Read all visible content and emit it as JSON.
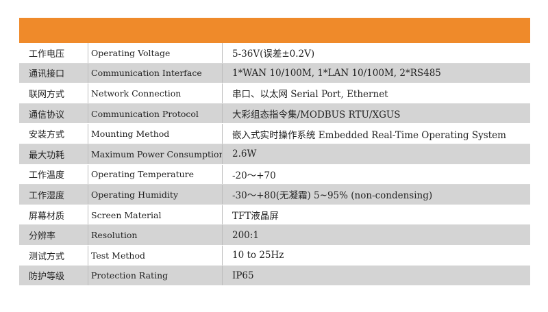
{
  "header": {
    "color": "#ef8a2a"
  },
  "rows": [
    {
      "zh": "工作电压",
      "en": "Operating Voltage",
      "value": "5-36V(误差±0.2V)"
    },
    {
      "zh": "通讯接口",
      "en": "Communication Interface",
      "value": "1*WAN 10/100M, 1*LAN 10/100M, 2*RS485"
    },
    {
      "zh": "联网方式",
      "en": "Network Connection",
      "value": "串口、以太网  Serial Port, Ethernet"
    },
    {
      "zh": "通信协议",
      "en": "Communication Protocol",
      "value": "大彩组态指令集/MODBUS RTU/XGUS"
    },
    {
      "zh": "安装方式",
      "en": "Mounting Method",
      "value": "嵌入式实时操作系统   Embedded Real-Time Operating System"
    },
    {
      "zh": "最大功耗",
      "en": "Maximum Power Consumption",
      "value": "2.6W"
    },
    {
      "zh": "工作温度",
      "en": "Operating Temperature",
      "value": "-20～+70"
    },
    {
      "zh": "工作湿度",
      "en": "Operating Humidity",
      "value": "-30～+80(无凝霜)   5~95% (non-condensing)"
    },
    {
      "zh": "屏幕材质",
      "en": "Screen Material",
      "value": "TFT液晶屏"
    },
    {
      "zh": "分辨率",
      "en": "Resolution",
      "value": "200:1"
    },
    {
      "zh": "测试方式",
      "en": "Test Method",
      "value": "10 to 25Hz"
    },
    {
      "zh": "防护等级",
      "en": "Protection Rating",
      "value": "IP65"
    }
  ]
}
